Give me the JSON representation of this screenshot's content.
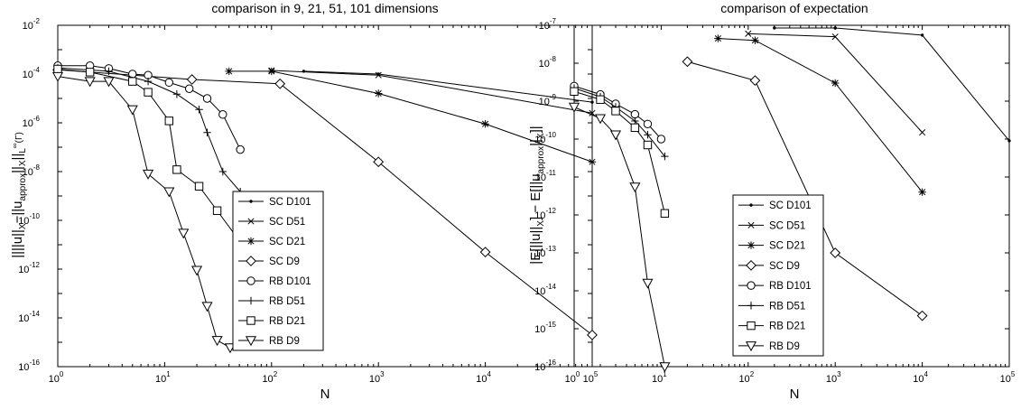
{
  "chart_data": [
    {
      "type": "line",
      "title": "comparison in 9, 21, 51, 101 dimensions",
      "xlabel": "N",
      "ylabel": "||||u||_X−||u_approx||_X||_L^∞(Γ)",
      "xscale": "log",
      "yscale": "log",
      "xlim": [
        1,
        100000
      ],
      "ylim": [
        1e-16,
        0.01
      ],
      "xtick_exponents": [
        0,
        1,
        2,
        3,
        4,
        5
      ],
      "ytick_exponents": [
        -16,
        -14,
        -12,
        -10,
        -8,
        -6,
        -4,
        -2
      ],
      "tick_base": "10",
      "grid": false,
      "legend_position": "lower-center",
      "series": [
        {
          "name": "SC D101",
          "marker": "dot",
          "x": [
            200,
            1000,
            100000
          ],
          "y": [
            0.00013,
            0.0001,
            7e-06
          ]
        },
        {
          "name": "SC D51",
          "marker": "x",
          "x": [
            100,
            1000,
            100000
          ],
          "y": [
            0.00014,
            9e-05,
            2.5e-06
          ]
        },
        {
          "name": "SC D21",
          "marker": "star",
          "x": [
            40,
            100,
            1000,
            10000,
            100000
          ],
          "y": [
            0.00013,
            0.00013,
            1.6e-05,
            9e-07,
            2.5e-08
          ]
        },
        {
          "name": "SC D9",
          "marker": "diamond",
          "x": [
            1,
            18,
            120,
            1000,
            10000,
            100000
          ],
          "y": [
            0.00015,
            6e-05,
            4e-05,
            2.5e-08,
            5e-12,
            2e-15
          ]
        },
        {
          "name": "RB D101",
          "marker": "circle",
          "x": [
            1,
            2,
            3,
            5,
            7,
            11,
            17,
            25,
            35,
            51
          ],
          "y": [
            0.00022,
            0.00022,
            0.00017,
            0.0001,
            9e-05,
            4.5e-05,
            2.5e-05,
            1e-05,
            2.2e-06,
            8e-08
          ]
        },
        {
          "name": "RB D51",
          "marker": "plus",
          "x": [
            1,
            3,
            7,
            13,
            21,
            25,
            35,
            51
          ],
          "y": [
            0.00018,
            0.00013,
            5e-05,
            1.5e-05,
            3.5e-06,
            4e-07,
            1e-08,
            1.5e-09
          ]
        },
        {
          "name": "RB D21",
          "marker": "square",
          "x": [
            1,
            2,
            5,
            7,
            11,
            13,
            21,
            31,
            51
          ],
          "y": [
            0.00016,
            0.00012,
            5e-05,
            1.8e-05,
            1.2e-06,
            1.2e-08,
            2.5e-09,
            2.5e-10,
            1.3e-11
          ]
        },
        {
          "name": "RB D9",
          "marker": "triangle-down",
          "x": [
            1,
            2,
            3,
            5,
            7,
            11,
            15,
            20,
            25,
            31,
            41
          ],
          "y": [
            8e-05,
            5e-05,
            5e-05,
            3.5e-06,
            8e-09,
            1.5e-09,
            3e-11,
            9e-13,
            3e-14,
            1.2e-15,
            6e-16
          ]
        }
      ]
    },
    {
      "type": "line",
      "title": "comparison of expectation",
      "xlabel": "N",
      "ylabel": "|E[||u||_X] − E[||u_approx||_X]|",
      "xscale": "log",
      "yscale": "log",
      "xlim": [
        1,
        100000
      ],
      "ylim": [
        1e-16,
        1e-07
      ],
      "xtick_exponents": [
        0,
        1,
        2,
        3,
        4,
        5
      ],
      "ytick_exponents": [
        -16,
        -15,
        -14,
        -13,
        -12,
        -11,
        -10,
        -9,
        -8,
        -7
      ],
      "tick_base": "10",
      "grid": false,
      "legend_position": "lower-center",
      "series": [
        {
          "name": "SC D101",
          "marker": "dot",
          "x": [
            200,
            1000,
            10000,
            100000
          ],
          "y": [
            8.5e-08,
            8.5e-08,
            5.5e-08,
            9e-11
          ]
        },
        {
          "name": "SC D51",
          "marker": "x",
          "x": [
            100,
            1000,
            10000
          ],
          "y": [
            6e-08,
            5e-08,
            1.5e-10
          ]
        },
        {
          "name": "SC D21",
          "marker": "star",
          "x": [
            45,
            120,
            1000,
            10000
          ],
          "y": [
            4.5e-08,
            4e-08,
            3e-09,
            4e-12
          ]
        },
        {
          "name": "SC D9",
          "marker": "diamond",
          "x": [
            20,
            120,
            1000,
            10000
          ],
          "y": [
            1.1e-08,
            3.5e-09,
            1e-13,
            2.2e-15
          ]
        },
        {
          "name": "RB D101",
          "marker": "circle",
          "x": [
            1,
            2,
            3,
            5,
            7,
            10
          ],
          "y": [
            2.5e-09,
            1.5e-09,
            8.5e-10,
            4.5e-10,
            2.5e-10,
            1e-10
          ]
        },
        {
          "name": "RB D51",
          "marker": "plus",
          "x": [
            1,
            2,
            3,
            5,
            7,
            11
          ],
          "y": [
            2.2e-09,
            1.3e-09,
            7e-10,
            3e-10,
            1.3e-10,
            3.5e-11
          ]
        },
        {
          "name": "RB D21",
          "marker": "square",
          "x": [
            1,
            2,
            3,
            5,
            7,
            11
          ],
          "y": [
            1.8e-09,
            1.1e-09,
            5.5e-10,
            2e-10,
            7e-11,
            1.1e-12
          ]
        },
        {
          "name": "RB D9",
          "marker": "triangle-down",
          "x": [
            1,
            2,
            3,
            5,
            7,
            11
          ],
          "y": [
            7e-10,
            3.5e-10,
            1.3e-10,
            5.5e-12,
            1.6e-14,
            1e-16
          ]
        }
      ]
    }
  ]
}
